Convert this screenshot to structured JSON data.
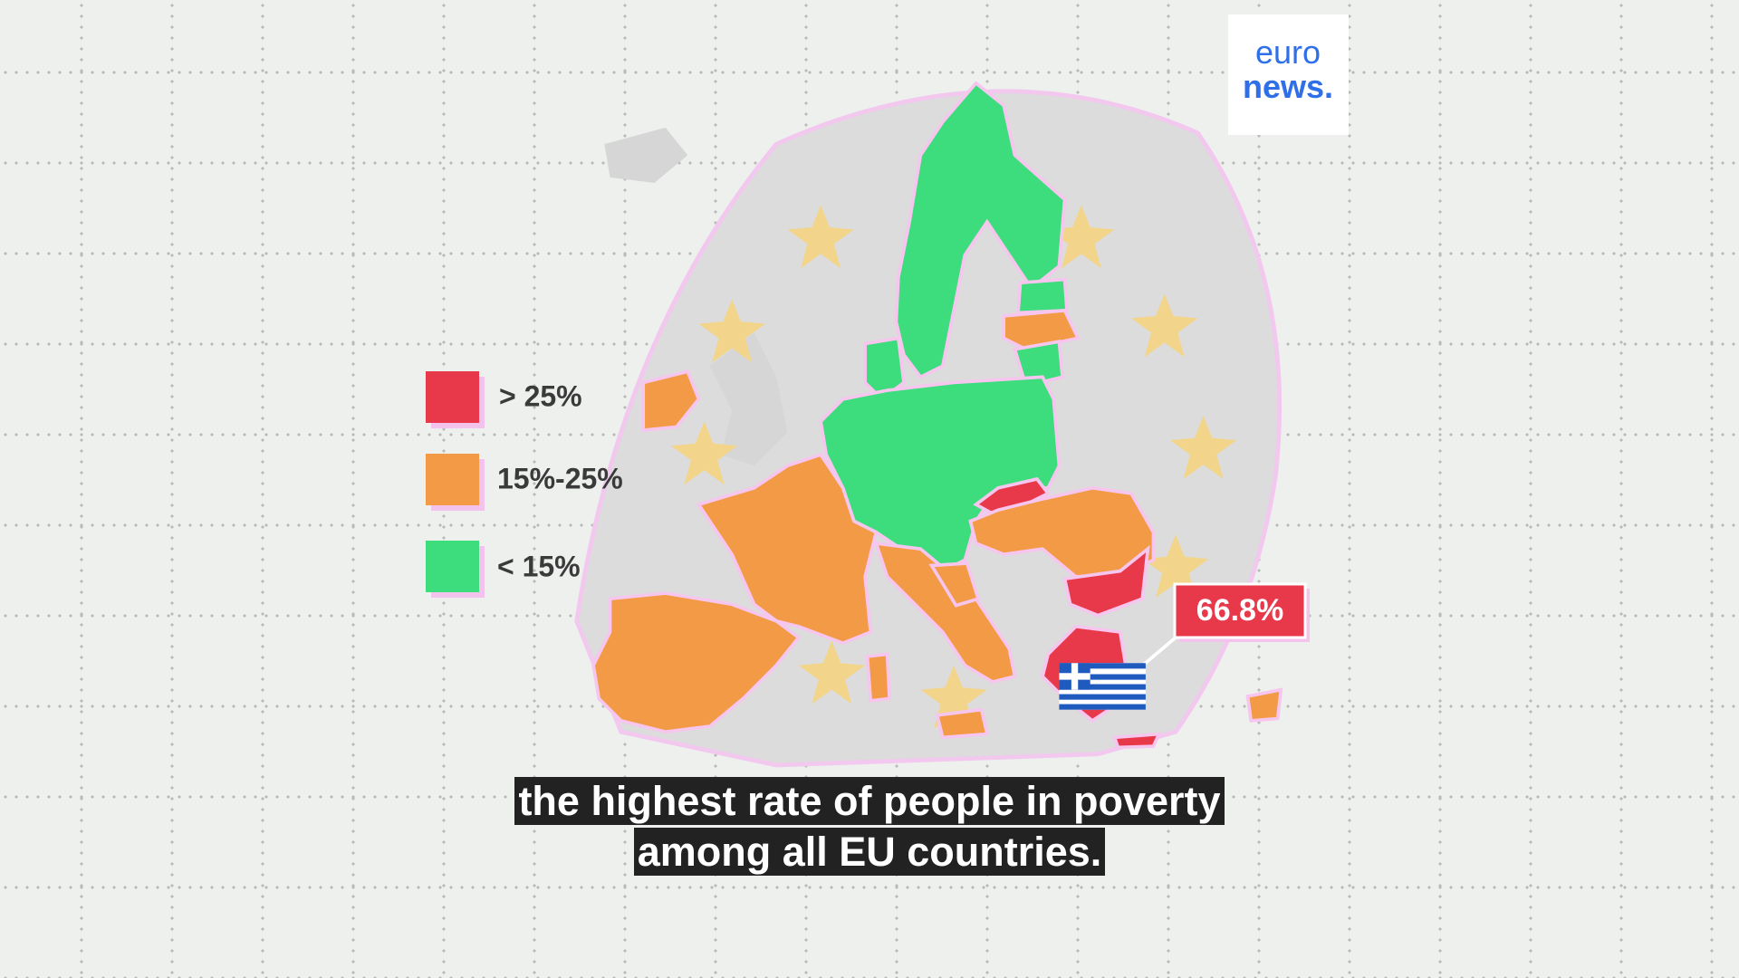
{
  "logo": {
    "line1": "euro",
    "line2": "news."
  },
  "legend": [
    {
      "label": "> 25%",
      "color": "#e8394b"
    },
    {
      "label": "15%-25%",
      "color": "#f29a45"
    },
    {
      "label": "< 15%",
      "color": "#3ddc7c"
    }
  ],
  "callout": {
    "label": "66.8%"
  },
  "subtitle": {
    "lines": [
      "the highest rate of people in poverty",
      "among all EU countries."
    ]
  }
}
